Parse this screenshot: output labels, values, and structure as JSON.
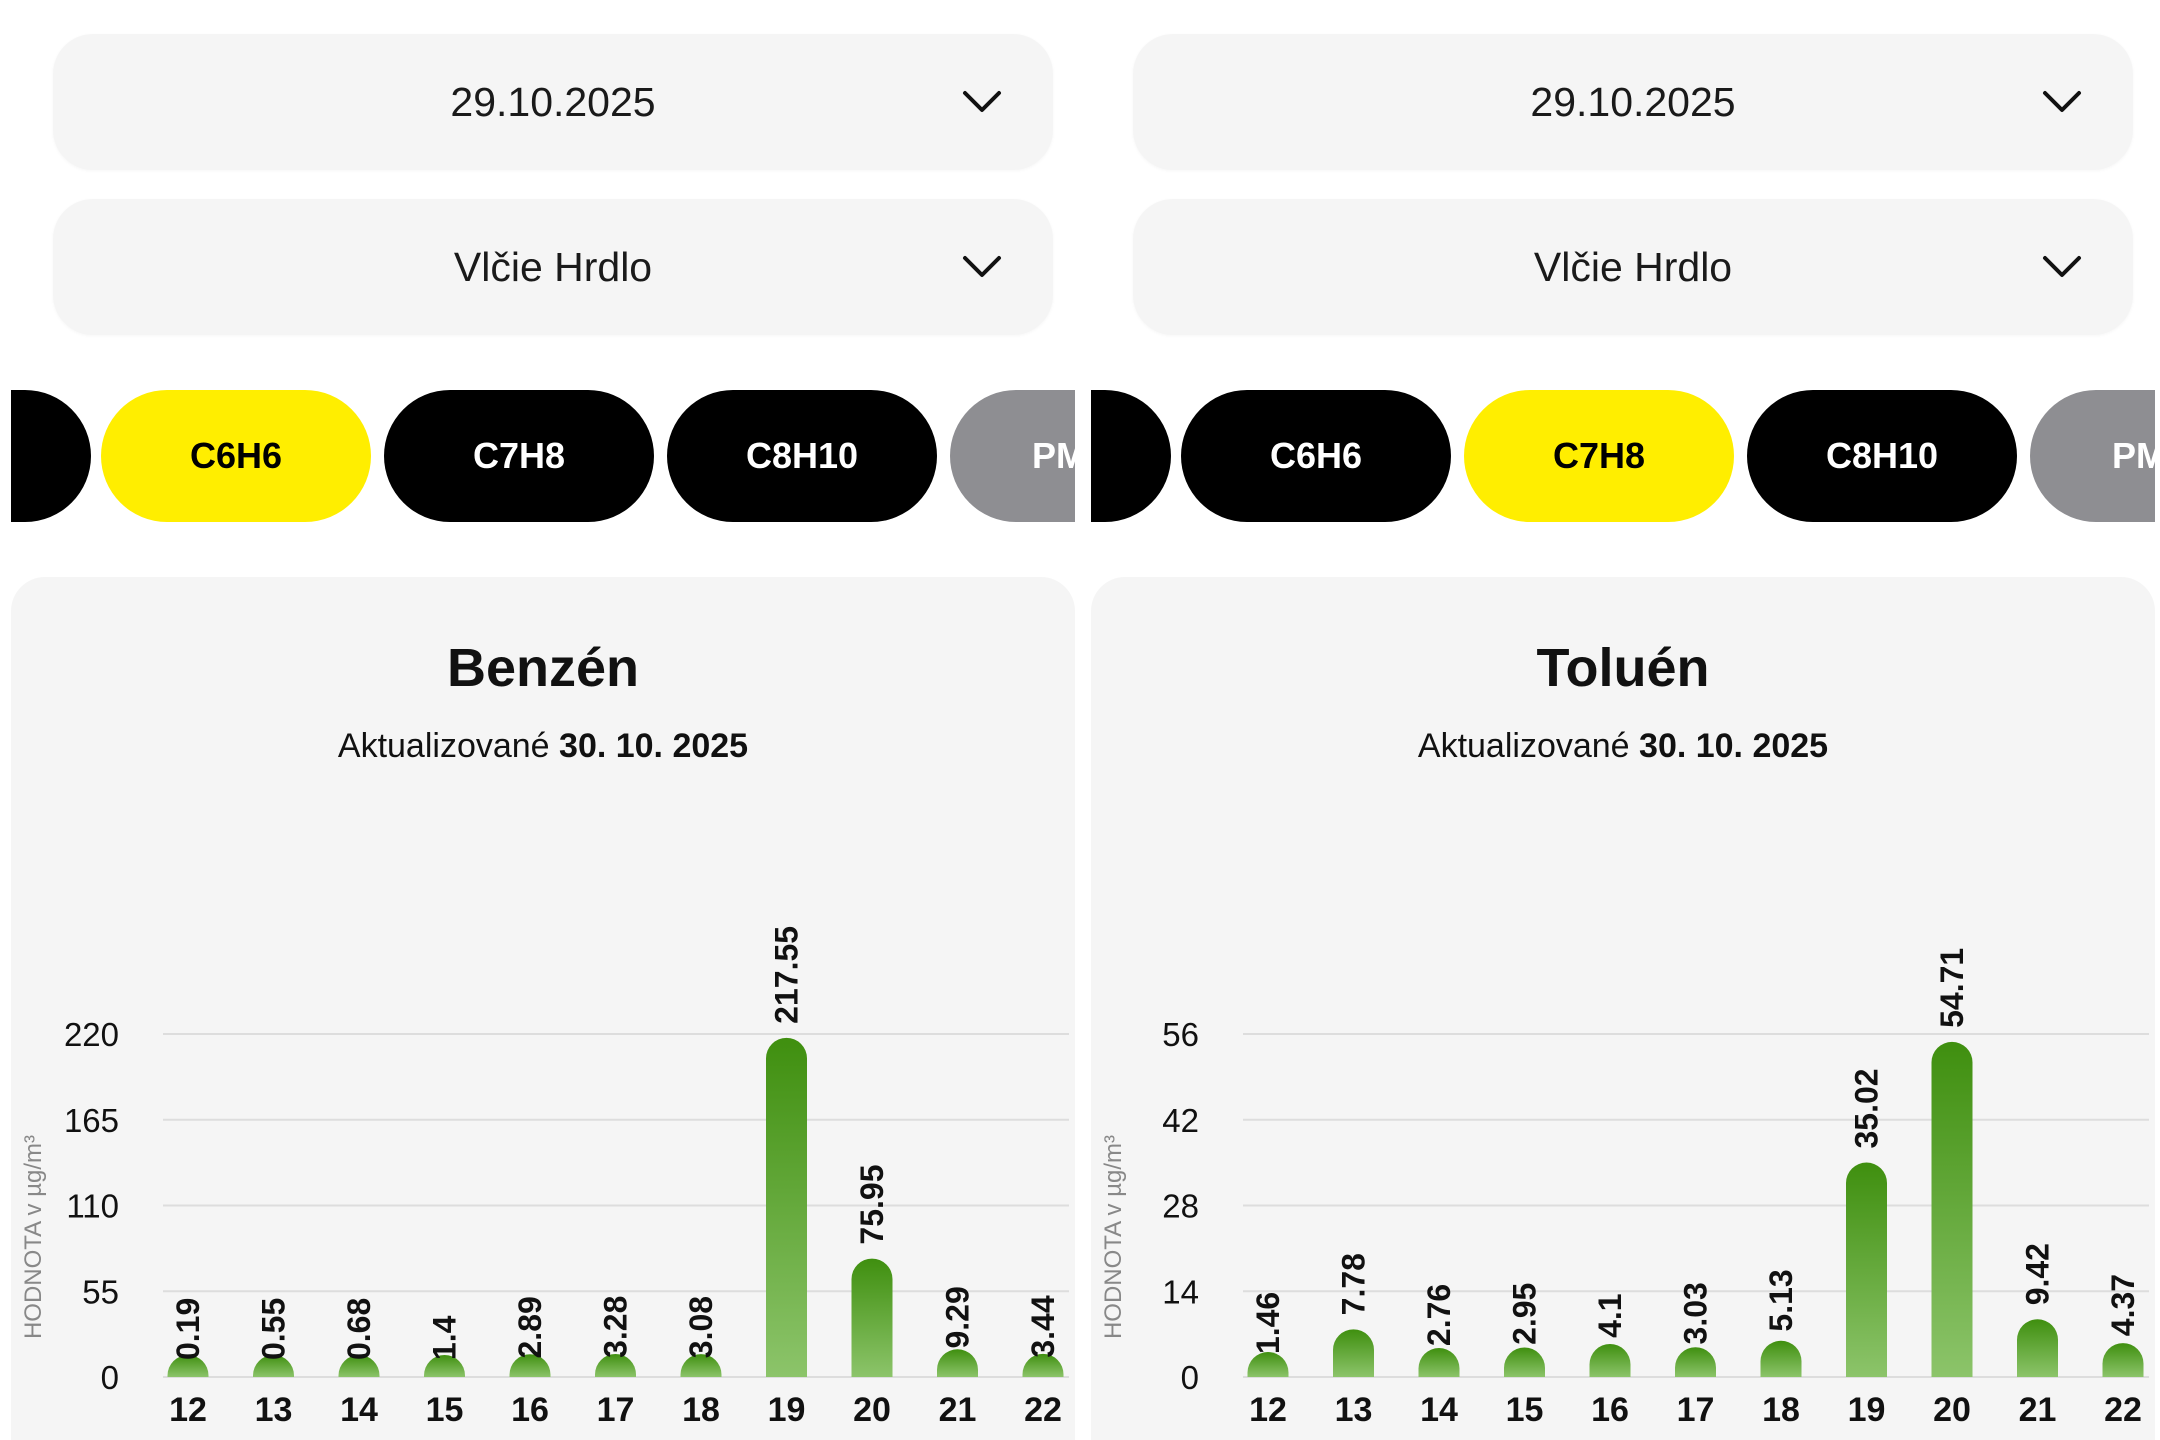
{
  "panels": [
    {
      "date": "29.10.2025",
      "location": "Vlčie Hrdlo",
      "chips": [
        {
          "label": "",
          "state": "default"
        },
        {
          "label": "C6H6",
          "state": "active"
        },
        {
          "label": "C7H8",
          "state": "default"
        },
        {
          "label": "C8H10",
          "state": "default"
        },
        {
          "label": "PM",
          "state": "muted"
        }
      ],
      "title": "Benzén",
      "updated_prefix": "Aktualizované",
      "updated_date": "30. 10. 2025",
      "chevron_icon": "chevron-down-icon"
    },
    {
      "date": "29.10.2025",
      "location": "Vlčie Hrdlo",
      "chips": [
        {
          "label": "",
          "state": "default"
        },
        {
          "label": "C6H6",
          "state": "default"
        },
        {
          "label": "C7H8",
          "state": "active"
        },
        {
          "label": "C8H10",
          "state": "default"
        },
        {
          "label": "PM",
          "state": "muted"
        }
      ],
      "title": "Toluén",
      "updated_prefix": "Aktualizované",
      "updated_date": "30. 10. 2025",
      "chevron_icon": "chevron-down-icon"
    }
  ],
  "colors": {
    "chip_active": "#ffee00",
    "chip_default": "#000000",
    "chip_muted": "#8e8e92",
    "bar_top": "#3f8f0f",
    "bar_bottom": "#8cc46a",
    "grid": "#dddddd"
  },
  "chart_data": [
    {
      "type": "bar",
      "title": "Benzén",
      "ylabel": "HODNOTA v µg/m³",
      "categories": [
        "12",
        "13",
        "14",
        "15",
        "16",
        "17",
        "18",
        "19",
        "20",
        "21",
        "22"
      ],
      "values": [
        0.19,
        0.55,
        0.68,
        1.4,
        2.89,
        3.28,
        3.08,
        217.55,
        75.95,
        9.29,
        3.44
      ],
      "value_labels": [
        "0.19",
        "0.55",
        "0.68",
        "1.4",
        "2.89",
        "3.28",
        "3.08",
        "217.55",
        "75.95",
        "9.29",
        "3.44"
      ],
      "yticks": [
        "0",
        "55",
        "110",
        "165",
        "220"
      ],
      "ylim": [
        0,
        220
      ],
      "grid": true
    },
    {
      "type": "bar",
      "title": "Toluén",
      "ylabel": "HODNOTA v µg/m³",
      "categories": [
        "12",
        "13",
        "14",
        "15",
        "16",
        "17",
        "18",
        "19",
        "20",
        "21",
        "22"
      ],
      "values": [
        1.46,
        7.78,
        2.76,
        2.95,
        4.1,
        3.03,
        5.13,
        35.02,
        54.71,
        9.42,
        4.37
      ],
      "value_labels": [
        "1.46",
        "7.78",
        "2.76",
        "2.95",
        "4.1",
        "3.03",
        "5.13",
        "35.02",
        "54.71",
        "9.42",
        "4.37"
      ],
      "yticks": [
        "0",
        "14",
        "28",
        "42",
        "56"
      ],
      "ylim": [
        0,
        56
      ],
      "grid": true
    }
  ]
}
